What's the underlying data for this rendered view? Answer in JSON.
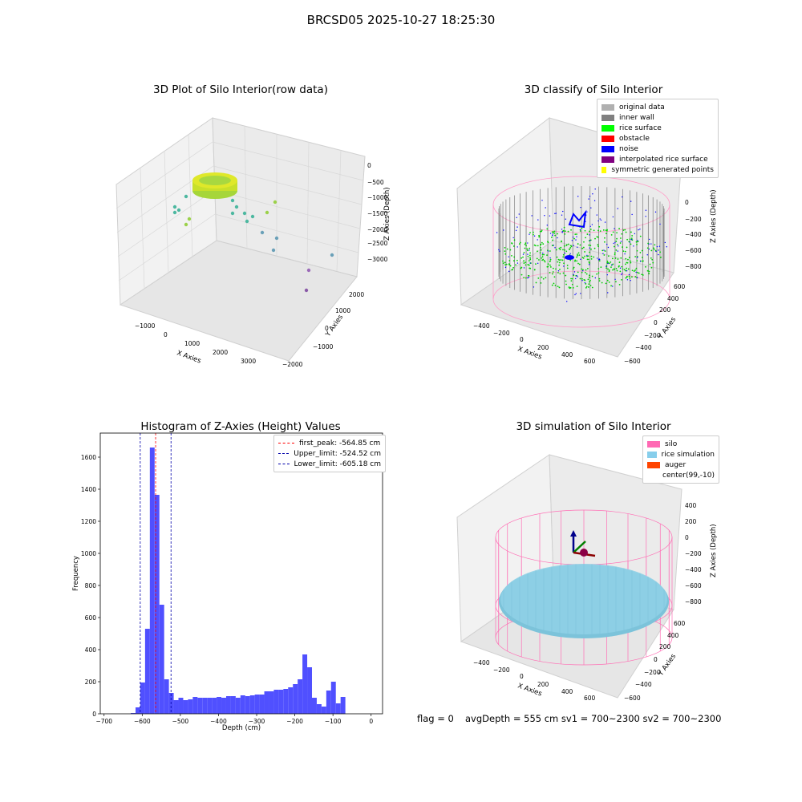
{
  "suptitle": "BRCSD05 2025-10-27 18:25:30",
  "colors": {
    "hist_bar": "#5050ff",
    "peak_line": "#ff0000",
    "limit_line": "#0000aa",
    "silo": "#ff69b4",
    "rice": "#87ceeb",
    "auger": "#ff4500",
    "wall": "#808080",
    "surface": "#00ff00",
    "noise": "#0000ff"
  },
  "panels": {
    "raw": {
      "title": "3D Plot of Silo Interior(row data)",
      "xlabel": "X Axies",
      "ylabel": "Y Axies",
      "zlabel": "Z Axies (Depth)",
      "xticks": [
        "−1000",
        "0",
        "1000",
        "2000",
        "3000"
      ],
      "yticks": [
        "−2000",
        "−1000",
        "0",
        "1000",
        "2000"
      ],
      "zticks": [
        "0",
        "−500",
        "−1000",
        "−1500",
        "−2000",
        "−2500",
        "−3000"
      ]
    },
    "classify": {
      "title": "3D classify of Silo Interior",
      "xlabel": "X Axies",
      "ylabel": "Y Axies",
      "zlabel": "Z Axies (Depth)",
      "xticks": [
        "−400",
        "−200",
        "0",
        "200",
        "400",
        "600"
      ],
      "yticks": [
        "−600",
        "−400",
        "−200",
        "0",
        "200",
        "400",
        "600"
      ],
      "zticks": [
        "200",
        "0",
        "−200",
        "−400",
        "−600",
        "−800"
      ],
      "legend": [
        {
          "label": "original data",
          "color": "#b0b0b0"
        },
        {
          "label": "inner wall",
          "color": "#808080"
        },
        {
          "label": "rice surface",
          "color": "#00ff00"
        },
        {
          "label": "obstacle",
          "color": "#ff0000"
        },
        {
          "label": "noise",
          "color": "#0000ff"
        },
        {
          "label": "interpolated rice surface",
          "color": "#800080"
        },
        {
          "label": "symmetric generated points",
          "color": "#ffff00"
        }
      ]
    },
    "simulation": {
      "title": "3D simulation of Silo Interior",
      "xlabel": "X Axies",
      "ylabel": "Y Axies",
      "zlabel": "Z Axies (Depth)",
      "xticks": [
        "−400",
        "−200",
        "0",
        "200",
        "400",
        "600"
      ],
      "yticks": [
        "−600",
        "−400",
        "−200",
        "0",
        "200",
        "400",
        "600"
      ],
      "zticks": [
        "400",
        "200",
        "0",
        "−200",
        "−400",
        "−600",
        "−800"
      ],
      "legend": [
        {
          "label": "silo",
          "color": "#ff69b4"
        },
        {
          "label": "rice simulation",
          "color": "#87ceeb"
        },
        {
          "label": "auger",
          "color": "#ff4500"
        },
        {
          "label": "center(99,-10)",
          "color": ""
        }
      ]
    }
  },
  "chart_data": {
    "type": "bar",
    "title": "Histogram of Z-Axies (Height) Values",
    "xlabel": "Depth (cm)",
    "ylabel": "Frequency",
    "xlim": [
      -710,
      30
    ],
    "ylim": [
      0,
      1750
    ],
    "xticks": [
      -700,
      -600,
      -500,
      -400,
      -300,
      -200,
      -100,
      0
    ],
    "yticks": [
      0,
      200,
      400,
      600,
      800,
      1000,
      1200,
      1400,
      1600
    ],
    "bin_width": 12.5,
    "bins_start": [
      -630,
      -617.5,
      -605,
      -592.5,
      -580,
      -567.5,
      -555,
      -542.5,
      -530,
      -517.5,
      -505,
      -492.5,
      -480,
      -467.5,
      -455,
      -442.5,
      -430,
      -417.5,
      -405,
      -392.5,
      -380,
      -367.5,
      -355,
      -342.5,
      -330,
      -317.5,
      -305,
      -292.5,
      -280,
      -267.5,
      -255,
      -242.5,
      -230,
      -217.5,
      -205,
      -192.5,
      -180,
      -167.5,
      -155,
      -142.5,
      -130,
      -117.5,
      -105,
      -92.5,
      -80,
      -67.5,
      -55,
      -42.5,
      -30,
      -17.5,
      -5
    ],
    "values": [
      5,
      40,
      195,
      530,
      1660,
      1365,
      680,
      215,
      130,
      85,
      100,
      85,
      90,
      105,
      100,
      100,
      100,
      100,
      105,
      100,
      110,
      110,
      100,
      115,
      110,
      115,
      120,
      120,
      140,
      140,
      150,
      150,
      155,
      165,
      185,
      215,
      370,
      290,
      100,
      60,
      45,
      145,
      200,
      65,
      105,
      0,
      0,
      0,
      0,
      0,
      0
    ],
    "lines": [
      {
        "label": "first_peak: -564.85 cm",
        "x": -564.85,
        "color": "#ff0000"
      },
      {
        "label": "Upper_limit: -524.52 cm",
        "x": -524.52,
        "color": "#0000aa"
      },
      {
        "label": "Lower_limit: -605.18 cm",
        "x": -605.18,
        "color": "#0000aa"
      }
    ],
    "legend_position": "top-right"
  },
  "footer": {
    "flag": "flag = 0",
    "avg": "avgDepth = 555 cm  sv1 = 700~2300  sv2 = 700~2300"
  }
}
